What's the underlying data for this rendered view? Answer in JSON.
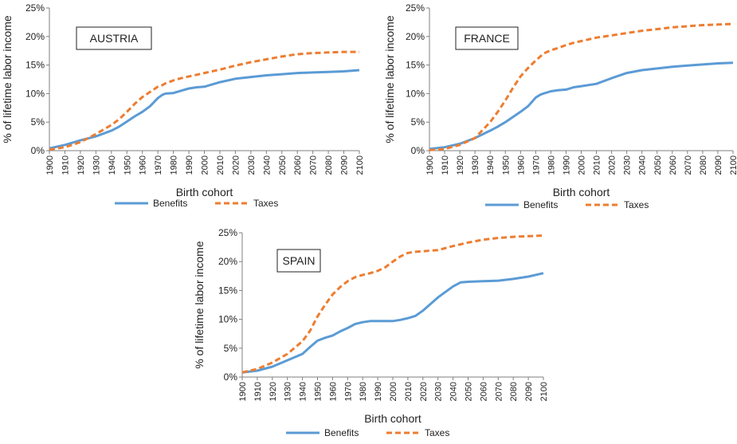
{
  "chart_data": [
    {
      "type": "line",
      "title": "AUSTRIA",
      "xlabel": "Birth cohort",
      "ylabel": "% of lifetime labor income",
      "x_ticks": [
        "1900",
        "1910",
        "1920",
        "1930",
        "1940",
        "1950",
        "1960",
        "1970",
        "1980",
        "1990",
        "2000",
        "2010",
        "2020",
        "2030",
        "2040",
        "2050",
        "2060",
        "2070",
        "2080",
        "2090",
        "2100"
      ],
      "y_ticks": [
        "0%",
        "5%",
        "10%",
        "15%",
        "20%",
        "25%"
      ],
      "xlim": [
        1900,
        2100
      ],
      "ylim": [
        0,
        25
      ],
      "grid": false,
      "legend": "bottom",
      "x": [
        1900,
        1910,
        1920,
        1930,
        1940,
        1945,
        1950,
        1955,
        1960,
        1965,
        1970,
        1973,
        1975,
        1980,
        1985,
        1990,
        1995,
        2000,
        2010,
        2020,
        2030,
        2040,
        2050,
        2060,
        2070,
        2080,
        2090,
        2100
      ],
      "series": [
        {
          "name": "Benefits",
          "color": "#5b9bd5",
          "dash": "solid",
          "values": [
            0.4,
            1.0,
            1.8,
            2.5,
            3.5,
            4.2,
            5.1,
            6.0,
            6.8,
            7.8,
            9.2,
            9.8,
            10.0,
            10.1,
            10.5,
            10.9,
            11.1,
            11.2,
            12.0,
            12.6,
            12.9,
            13.2,
            13.4,
            13.6,
            13.7,
            13.8,
            13.9,
            14.1
          ]
        },
        {
          "name": "Taxes",
          "color": "#ed7d31",
          "dash": "dashed",
          "values": [
            0.2,
            0.6,
            1.5,
            2.9,
            4.5,
            5.5,
            6.8,
            8.2,
            9.4,
            10.3,
            11.2,
            11.5,
            11.8,
            12.3,
            12.7,
            13.0,
            13.3,
            13.6,
            14.2,
            14.9,
            15.5,
            16.0,
            16.5,
            16.9,
            17.1,
            17.2,
            17.3,
            17.3
          ]
        }
      ]
    },
    {
      "type": "line",
      "title": "FRANCE",
      "xlabel": "Birth cohort",
      "ylabel": "% of lifetime labor income",
      "x_ticks": [
        "1900",
        "1910",
        "1920",
        "1930",
        "1940",
        "1950",
        "1960",
        "1970",
        "1980",
        "1990",
        "2000",
        "2010",
        "2020",
        "2030",
        "2040",
        "2050",
        "2060",
        "2070",
        "2080",
        "2090",
        "2100"
      ],
      "y_ticks": [
        "0%",
        "5%",
        "10%",
        "15%",
        "20%",
        "25%"
      ],
      "xlim": [
        1900,
        2100
      ],
      "ylim": [
        0,
        25
      ],
      "grid": false,
      "legend": "bottom",
      "x": [
        1900,
        1910,
        1920,
        1930,
        1940,
        1945,
        1950,
        1955,
        1960,
        1965,
        1970,
        1973,
        1975,
        1980,
        1985,
        1990,
        1995,
        2000,
        2010,
        2020,
        2030,
        2040,
        2050,
        2060,
        2070,
        2080,
        2090,
        2100
      ],
      "series": [
        {
          "name": "Benefits",
          "color": "#5b9bd5",
          "dash": "solid",
          "values": [
            0.3,
            0.6,
            1.2,
            2.2,
            3.5,
            4.2,
            5.0,
            5.9,
            6.8,
            7.8,
            9.3,
            9.8,
            10.0,
            10.4,
            10.6,
            10.7,
            11.1,
            11.3,
            11.7,
            12.7,
            13.6,
            14.1,
            14.4,
            14.7,
            14.9,
            15.1,
            15.3,
            15.4
          ]
        },
        {
          "name": "Taxes",
          "color": "#ed7d31",
          "dash": "dashed",
          "values": [
            0.1,
            0.3,
            1.0,
            2.2,
            5.0,
            6.8,
            8.8,
            11.0,
            13.0,
            14.5,
            15.8,
            16.5,
            17.0,
            17.6,
            18.0,
            18.5,
            18.9,
            19.2,
            19.8,
            20.2,
            20.6,
            21.0,
            21.3,
            21.6,
            21.8,
            22.0,
            22.1,
            22.2
          ]
        }
      ]
    },
    {
      "type": "line",
      "title": "SPAIN",
      "xlabel": "Birth cohort",
      "ylabel": "% of lifetime labor income",
      "x_ticks": [
        "1900",
        "1910",
        "1920",
        "1930",
        "1940",
        "1950",
        "1960",
        "1970",
        "1980",
        "1990",
        "2000",
        "2010",
        "2020",
        "2030",
        "2040",
        "2050",
        "2060",
        "2070",
        "2080",
        "2090",
        "2100"
      ],
      "y_ticks": [
        "0%",
        "5%",
        "10%",
        "15%",
        "20%",
        "25%"
      ],
      "xlim": [
        1900,
        2100
      ],
      "ylim": [
        0,
        25
      ],
      "grid": false,
      "legend": "bottom",
      "x": [
        1900,
        1910,
        1920,
        1930,
        1940,
        1945,
        1950,
        1955,
        1960,
        1965,
        1970,
        1975,
        1980,
        1985,
        1990,
        1995,
        2000,
        2005,
        2010,
        2015,
        2020,
        2030,
        2040,
        2045,
        2050,
        2060,
        2070,
        2080,
        2090,
        2100
      ],
      "series": [
        {
          "name": "Benefits",
          "color": "#5b9bd5",
          "dash": "solid",
          "values": [
            0.8,
            1.1,
            1.8,
            2.9,
            4.0,
            5.2,
            6.3,
            6.8,
            7.2,
            7.9,
            8.5,
            9.2,
            9.5,
            9.7,
            9.7,
            9.7,
            9.7,
            9.9,
            10.2,
            10.6,
            11.5,
            13.8,
            15.7,
            16.4,
            16.5,
            16.6,
            16.7,
            17.0,
            17.4,
            18.0
          ]
        },
        {
          "name": "Taxes",
          "color": "#ed7d31",
          "dash": "dashed",
          "values": [
            0.8,
            1.4,
            2.5,
            4.0,
            6.2,
            8.0,
            10.5,
            12.5,
            14.3,
            15.6,
            16.6,
            17.3,
            17.7,
            18.0,
            18.4,
            19.0,
            20.0,
            20.9,
            21.5,
            21.7,
            21.8,
            22.0,
            22.7,
            23.0,
            23.3,
            23.8,
            24.1,
            24.3,
            24.4,
            24.5
          ]
        }
      ]
    }
  ]
}
